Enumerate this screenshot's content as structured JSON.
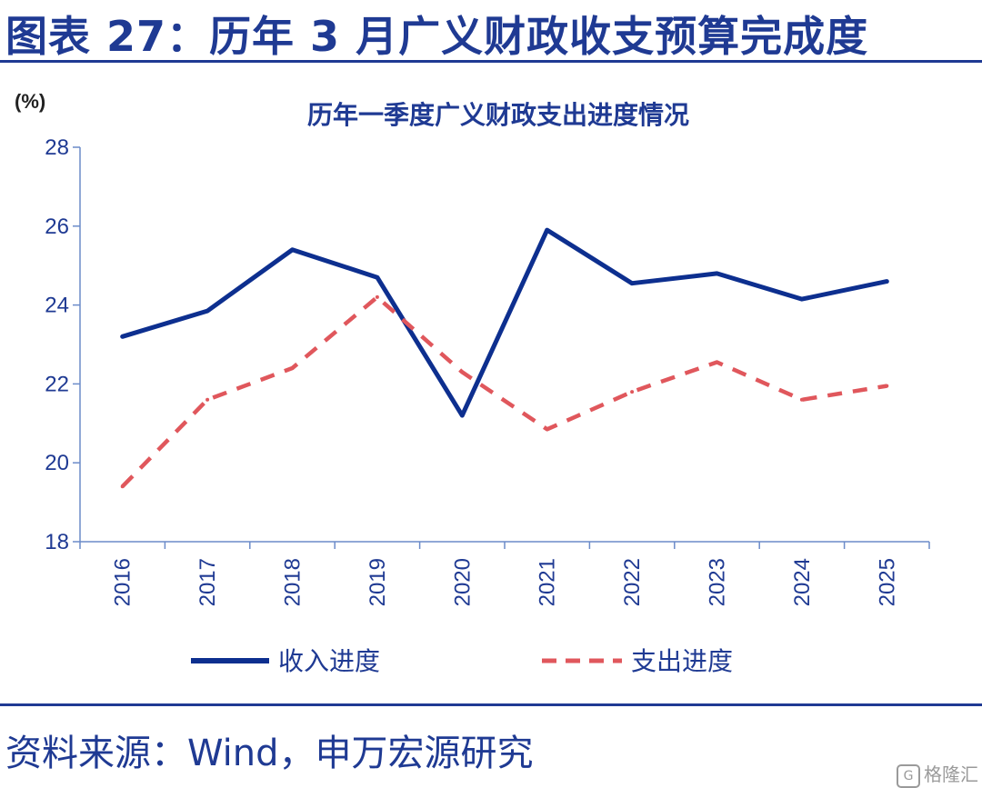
{
  "figure_title": "图表 27：历年 3 月广义财政收支预算完成度",
  "source_note": "资料来源：Wind，申万宏源研究",
  "watermark": {
    "logo": "G",
    "text": "格隆汇"
  },
  "colors": {
    "income": "#0d2f8f",
    "expense": "#e0575c",
    "axis": "#6b8bc9",
    "text": "#1f3a93"
  },
  "chart_data": {
    "type": "line",
    "title": "历年一季度广义财政支出进度情况",
    "unit_label": "(%)",
    "xlabel": "",
    "ylabel": "",
    "x": [
      "2016",
      "2017",
      "2018",
      "2019",
      "2020",
      "2021",
      "2022",
      "2023",
      "2024",
      "2025"
    ],
    "ylim": [
      18,
      28
    ],
    "yticks": [
      18,
      20,
      22,
      24,
      26,
      28
    ],
    "grid": false,
    "legend_position": "bottom",
    "series": [
      {
        "name": "收入进度",
        "style": "solid",
        "color": "#0d2f8f",
        "values": [
          23.2,
          23.85,
          25.4,
          24.7,
          21.2,
          25.9,
          24.55,
          24.8,
          24.15,
          24.6
        ]
      },
      {
        "name": "支出进度",
        "style": "dashed",
        "color": "#e0575c",
        "values": [
          19.4,
          21.6,
          22.4,
          24.2,
          22.3,
          20.85,
          21.8,
          22.55,
          21.6,
          21.95
        ]
      }
    ]
  }
}
